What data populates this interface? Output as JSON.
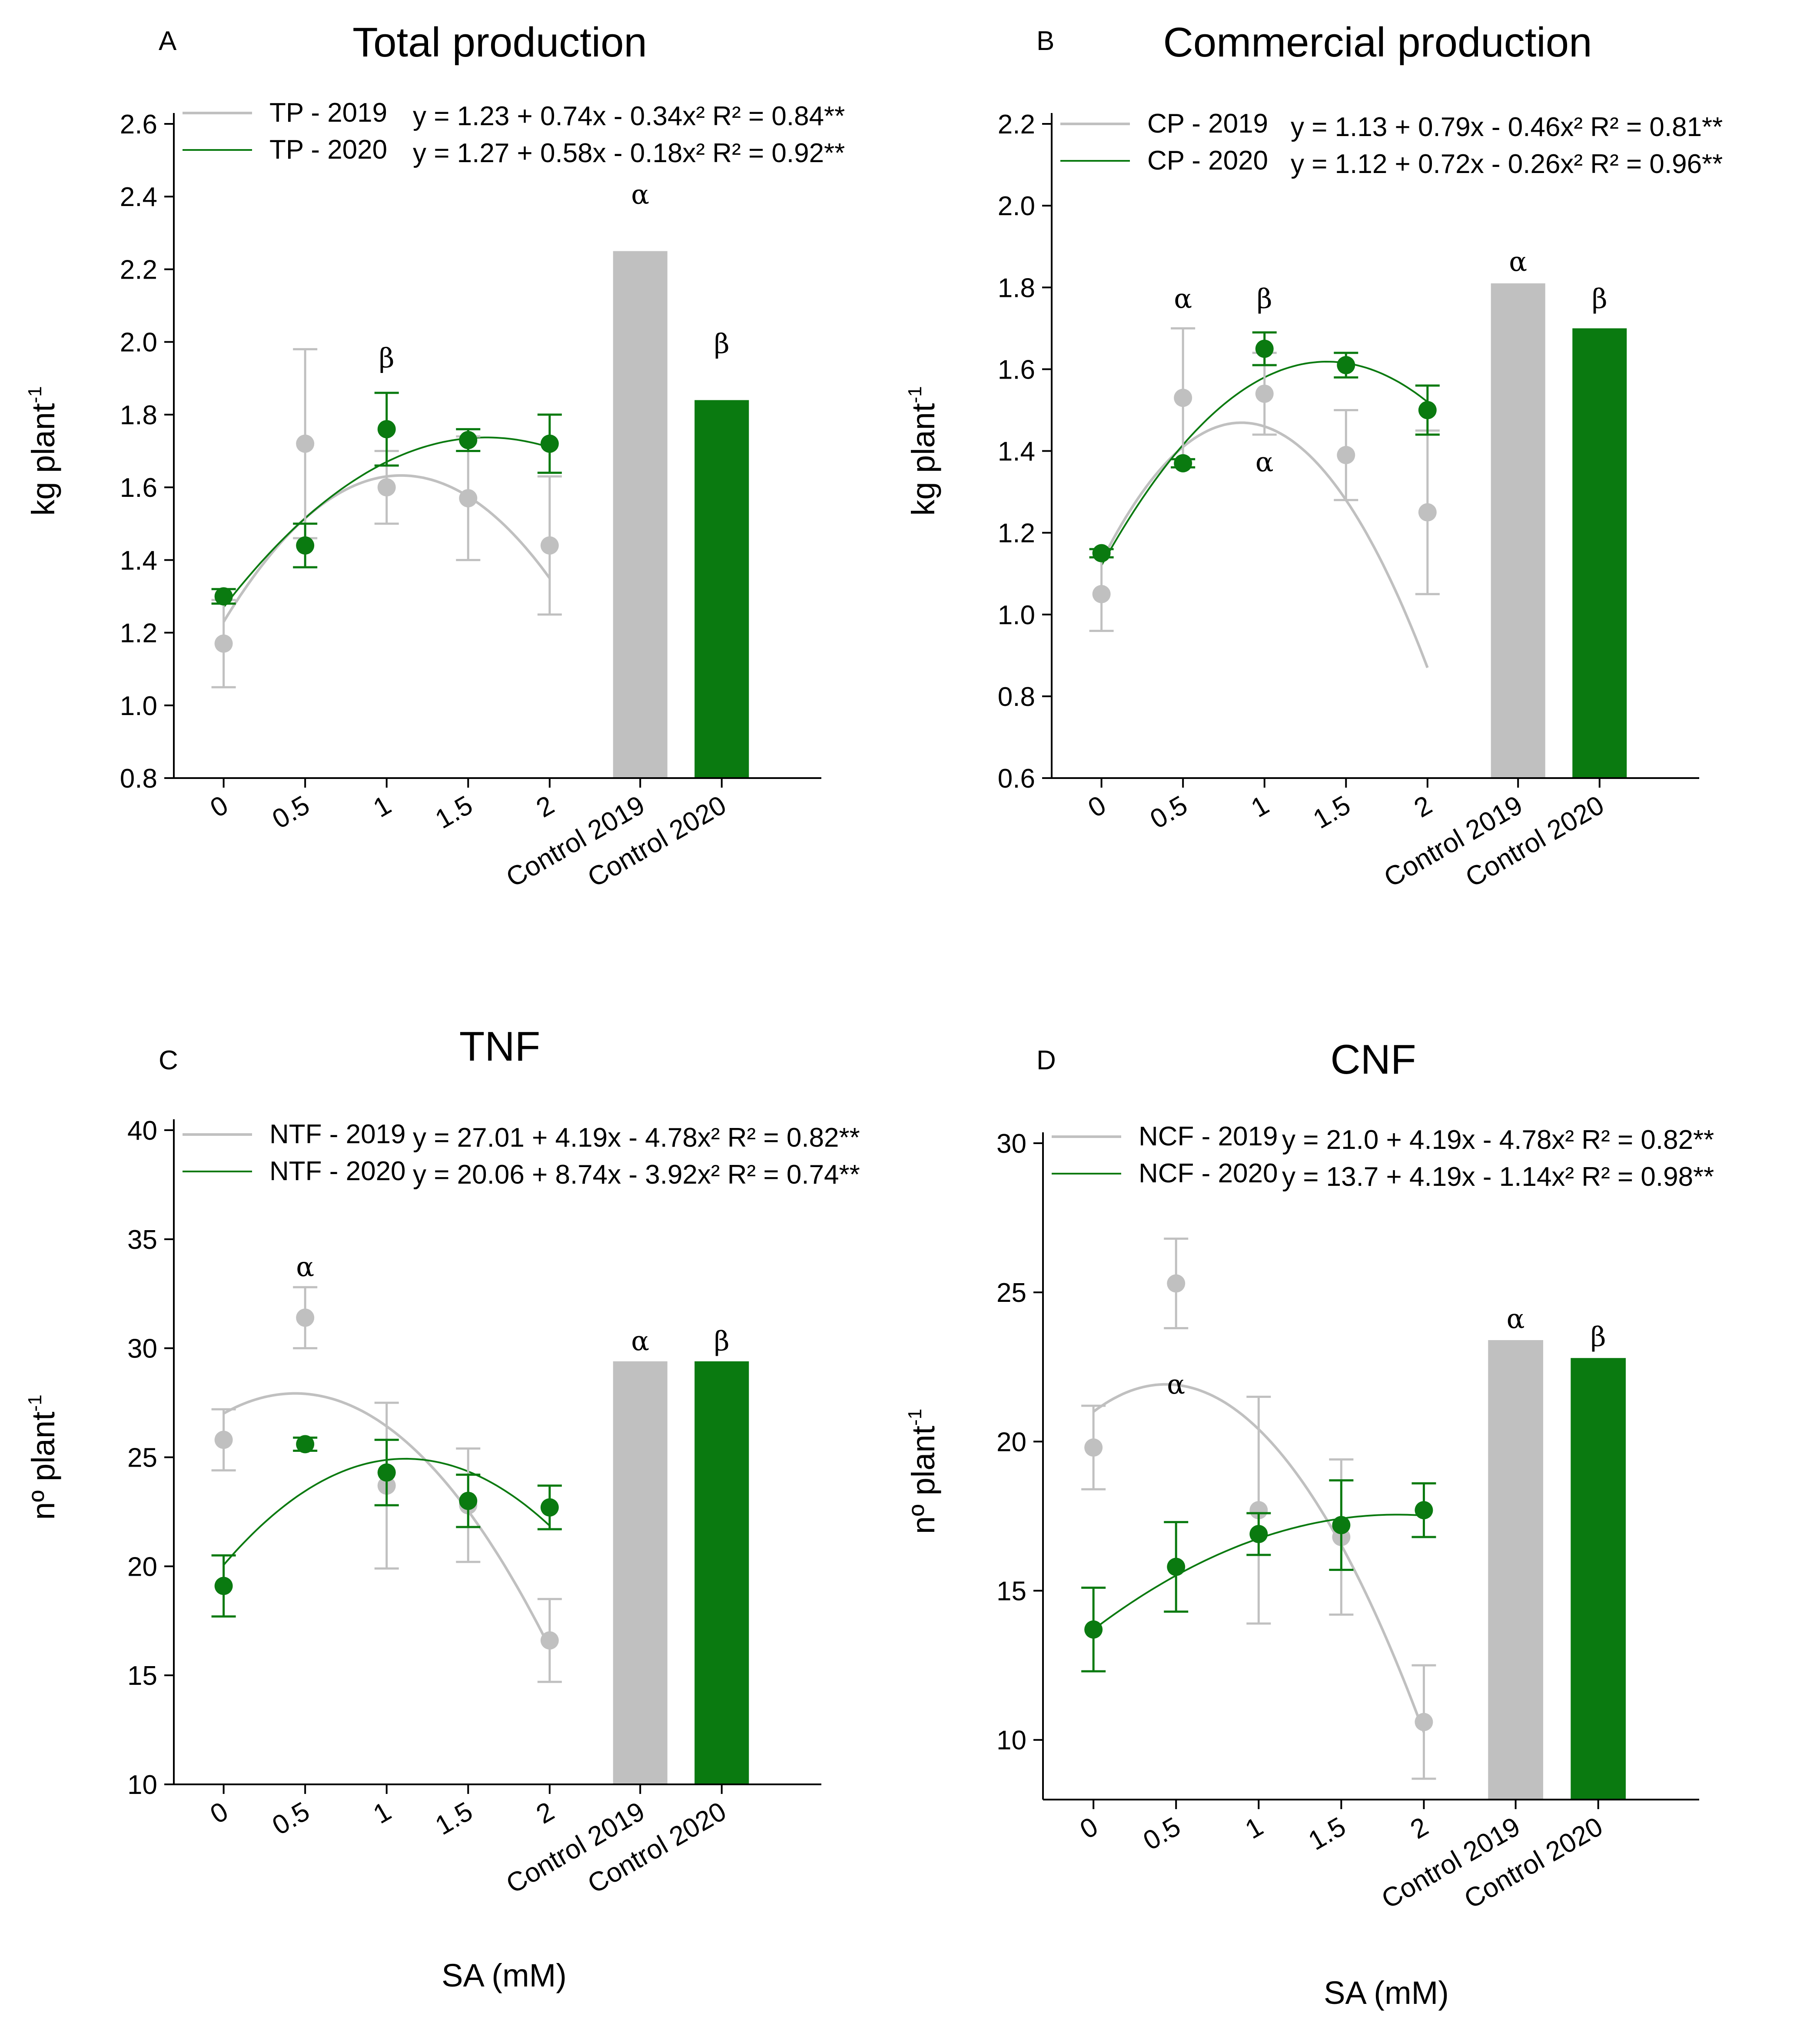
{
  "colors": {
    "y2019": "#c0c0c0",
    "y2020": "#0a7a10"
  },
  "xlabel": "SA (mM)",
  "chart_data": [
    {
      "type": "scatter",
      "letter": "A",
      "title": "Total production",
      "ylabel": "kg plant",
      "ylabel_sup": "-1",
      "ylim": [
        0.8,
        2.6
      ],
      "yticks": [
        "0.8",
        "1.0",
        "1.2",
        "1.4",
        "1.6",
        "1.8",
        "2.0",
        "2.2",
        "2.4",
        "2.6"
      ],
      "categories": [
        "0",
        "0.5",
        "1",
        "1.5",
        "2",
        "Control 2019",
        "Control 2020"
      ],
      "series": [
        {
          "name": "TP - 2019",
          "equation": "y = 1.23 + 0.74x - 0.34x² R² = 0.84**",
          "x": [
            0,
            0.5,
            1,
            1.5,
            2
          ],
          "values": [
            1.17,
            1.72,
            1.6,
            1.57,
            1.44
          ],
          "errors": [
            0.12,
            0.26,
            0.1,
            0.17,
            0.19
          ],
          "fit": [
            1.23,
            0.74,
            -0.34
          ],
          "control": 2.25
        },
        {
          "name": "TP - 2020",
          "equation": "y = 1.27 + 0.58x - 0.18x² R² = 0.92**",
          "x": [
            0,
            0.5,
            1,
            1.5,
            2
          ],
          "values": [
            1.3,
            1.44,
            1.76,
            1.73,
            1.72
          ],
          "errors": [
            0.02,
            0.06,
            0.1,
            0.03,
            0.08
          ],
          "fit": [
            1.27,
            0.58,
            -0.18
          ],
          "control": 1.84
        }
      ],
      "annotations": [
        {
          "text": "β",
          "at": 2,
          "value": 1.93
        },
        {
          "text": "α",
          "at": 5,
          "value": 2.38
        },
        {
          "text": "β",
          "at": 6,
          "value": 1.97
        }
      ]
    },
    {
      "type": "scatter",
      "letter": "B",
      "title": "Commercial production",
      "ylabel": "kg plant",
      "ylabel_sup": "-1",
      "ylim": [
        0.6,
        2.2
      ],
      "yticks": [
        "0.6",
        "0.8",
        "1.0",
        "1.2",
        "1.4",
        "1.6",
        "1.8",
        "2.0",
        "2.2"
      ],
      "categories": [
        "0",
        "0.5",
        "1",
        "1.5",
        "2",
        "Control 2019",
        "Control 2020"
      ],
      "series": [
        {
          "name": "CP - 2019",
          "equation": "y = 1.13 + 0.79x - 0.46x² R² = 0.81**",
          "x": [
            0,
            0.5,
            1,
            1.5,
            2
          ],
          "values": [
            1.05,
            1.53,
            1.54,
            1.39,
            1.25
          ],
          "errors": [
            0.09,
            0.17,
            0.1,
            0.11,
            0.2
          ],
          "fit": [
            1.13,
            0.79,
            -0.46
          ],
          "control": 1.81
        },
        {
          "name": "CP - 2020",
          "equation": "y = 1.12 + 0.72x - 0.26x²  R² = 0.96**",
          "x": [
            0,
            0.5,
            1,
            1.5,
            2
          ],
          "values": [
            1.15,
            1.37,
            1.65,
            1.61,
            1.5
          ],
          "errors": [
            0.01,
            0.01,
            0.04,
            0.03,
            0.06
          ],
          "fit": [
            1.12,
            0.72,
            -0.26
          ],
          "control": 1.7
        }
      ],
      "annotations": [
        {
          "text": "α",
          "at": 1,
          "value": 1.75
        },
        {
          "text": "β",
          "at": 2,
          "value": 1.75
        },
        {
          "text": "α",
          "at": 2,
          "value": 1.35
        },
        {
          "text": "α",
          "at": 5,
          "value": 1.84
        },
        {
          "text": "β",
          "at": 6,
          "value": 1.75
        }
      ]
    },
    {
      "type": "scatter",
      "letter": "C",
      "title": "TNF",
      "ylabel": "nº plant",
      "ylabel_sup": "-1",
      "ylim": [
        10,
        40
      ],
      "yticks": [
        "10",
        "15",
        "20",
        "25",
        "30",
        "35",
        "40"
      ],
      "categories": [
        "0",
        "0.5",
        "1",
        "1.5",
        "2",
        "Control 2019",
        "Control 2020"
      ],
      "series": [
        {
          "name": "NTF - 2019",
          "equation": "y = 27.01 + 4.19x - 4.78x² R² = 0.82**",
          "x": [
            0,
            0.5,
            1,
            1.5,
            2
          ],
          "values": [
            25.8,
            31.4,
            23.7,
            22.8,
            16.6
          ],
          "errors": [
            1.4,
            1.4,
            3.8,
            2.6,
            1.9
          ],
          "fit": [
            27.01,
            4.19,
            -4.78
          ],
          "control": 29.4
        },
        {
          "name": "NTF - 2020",
          "equation": "y = 20.06 + 8.74x - 3.92x² R² = 0.74**",
          "x": [
            0,
            0.5,
            1,
            1.5,
            2
          ],
          "values": [
            19.1,
            25.6,
            24.3,
            23.0,
            22.7
          ],
          "errors": [
            1.4,
            0.3,
            1.5,
            1.2,
            1.0
          ],
          "fit": [
            20.06,
            8.74,
            -3.92
          ],
          "control": 29.4
        }
      ],
      "annotations": [
        {
          "text": "α",
          "at": 1,
          "value": 33.3
        },
        {
          "text": "α",
          "at": 5,
          "value": 29.9
        },
        {
          "text": "β",
          "at": 6,
          "value": 29.9
        }
      ]
    },
    {
      "type": "scatter",
      "letter": "D",
      "title": "CNF",
      "ylabel": "nº plant",
      "ylabel_sup": "-1",
      "ylim": [
        8,
        30
      ],
      "yticks": [
        "10",
        "15",
        "20",
        "25",
        "30"
      ],
      "categories": [
        "0",
        "0.5",
        "1",
        "1.5",
        "2",
        "Control 2019",
        "Control 2020"
      ],
      "series": [
        {
          "name": "NCF - 2019",
          "equation": "y = 21.0 + 4.19x - 4.78x² R² = 0.82**",
          "x": [
            0,
            0.5,
            1,
            1.5,
            2
          ],
          "values": [
            19.8,
            25.3,
            17.7,
            16.8,
            10.6
          ],
          "errors": [
            1.4,
            1.5,
            3.8,
            2.6,
            1.9
          ],
          "fit": [
            21.0,
            4.19,
            -4.78
          ],
          "control": 23.4
        },
        {
          "name": "NCF - 2020",
          "equation": "y = 13.7 + 4.19x - 1.14x² R² = 0.98**",
          "x": [
            0,
            0.5,
            1,
            1.5,
            2
          ],
          "values": [
            13.7,
            15.8,
            16.9,
            17.2,
            17.7
          ],
          "errors": [
            1.4,
            1.5,
            0.7,
            1.5,
            0.9
          ],
          "fit": [
            13.7,
            4.19,
            -1.14
          ],
          "control": 22.8
        }
      ],
      "annotations": [
        {
          "text": "α",
          "at": 1,
          "value": 21.6
        },
        {
          "text": "α",
          "at": 5,
          "value": 23.8
        },
        {
          "text": "β",
          "at": 6,
          "value": 23.2
        }
      ]
    }
  ]
}
